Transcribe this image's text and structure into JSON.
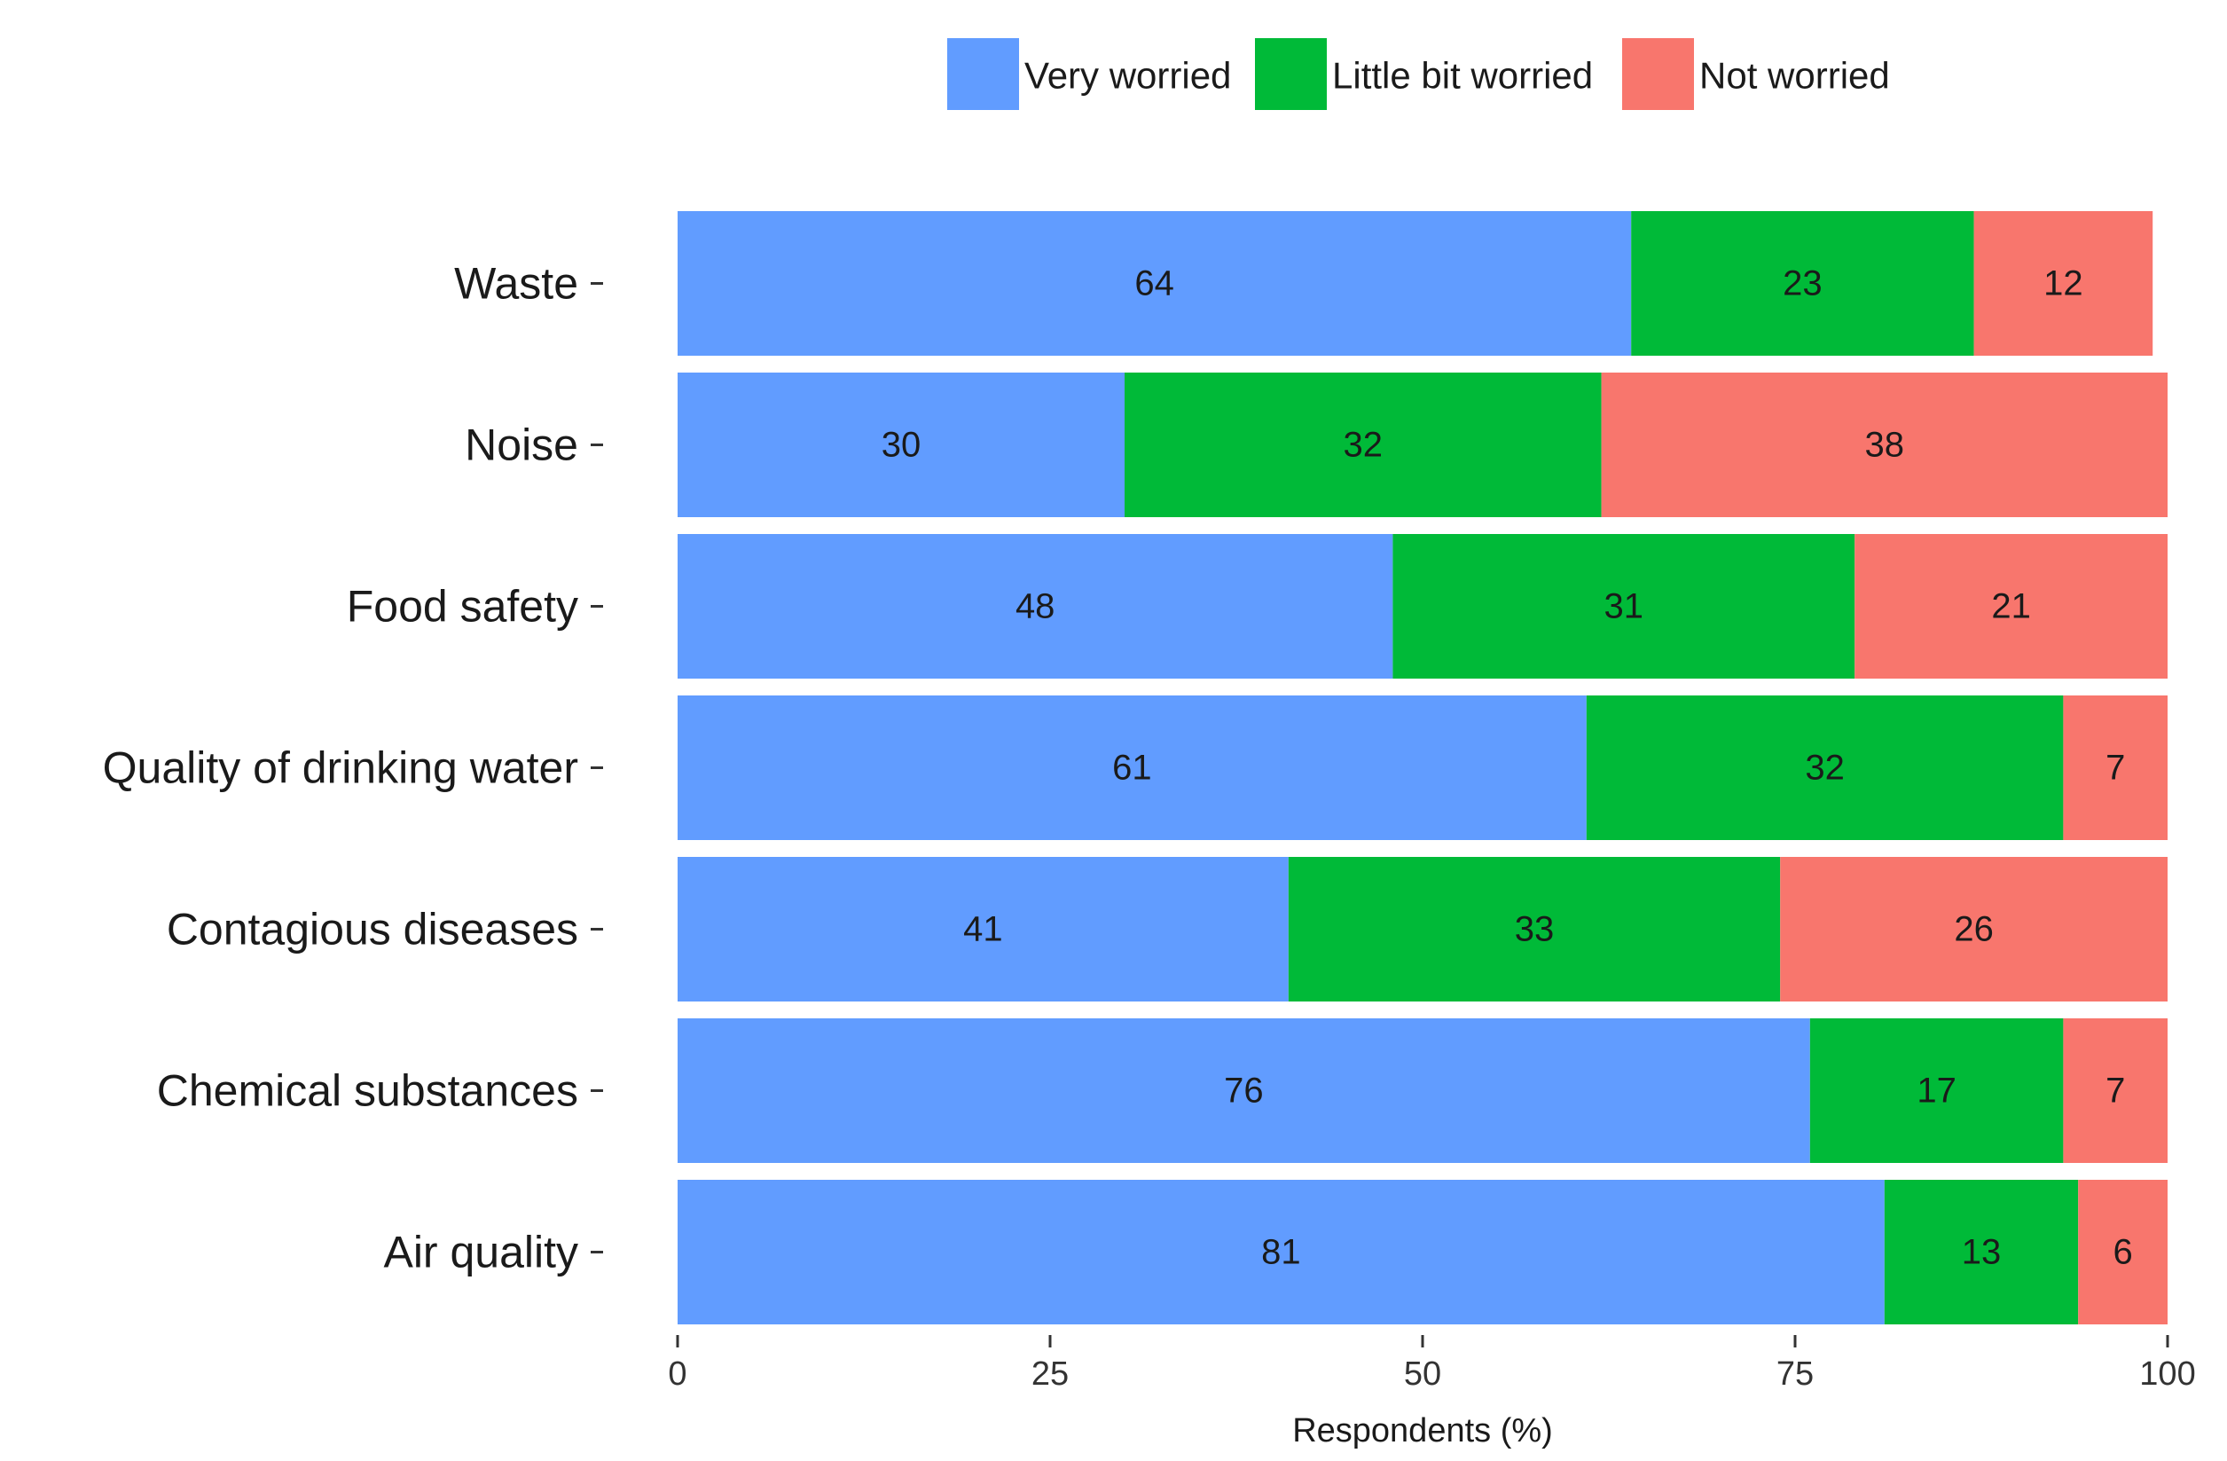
{
  "chart_data": {
    "type": "bar",
    "orientation": "horizontal",
    "stacked": true,
    "categories": [
      "Waste",
      "Noise",
      "Food safety",
      "Quality of drinking water",
      "Contagious diseases",
      "Chemical substances",
      "Air quality"
    ],
    "series": [
      {
        "name": "Very worried",
        "color": "#619CFF",
        "values": [
          64,
          30,
          48,
          61,
          41,
          76,
          81
        ]
      },
      {
        "name": "Little bit worried",
        "color": "#00BA38",
        "values": [
          23,
          32,
          31,
          32,
          33,
          17,
          13
        ]
      },
      {
        "name": "Not worried",
        "color": "#F8766D",
        "values": [
          12,
          38,
          21,
          7,
          26,
          7,
          6
        ]
      }
    ],
    "xlabel": "Respondents (%)",
    "ylabel": "",
    "xlim": [
      0,
      100
    ],
    "xticks": [
      0,
      25,
      50,
      75,
      100
    ],
    "legend_position": "top",
    "grid": false
  }
}
